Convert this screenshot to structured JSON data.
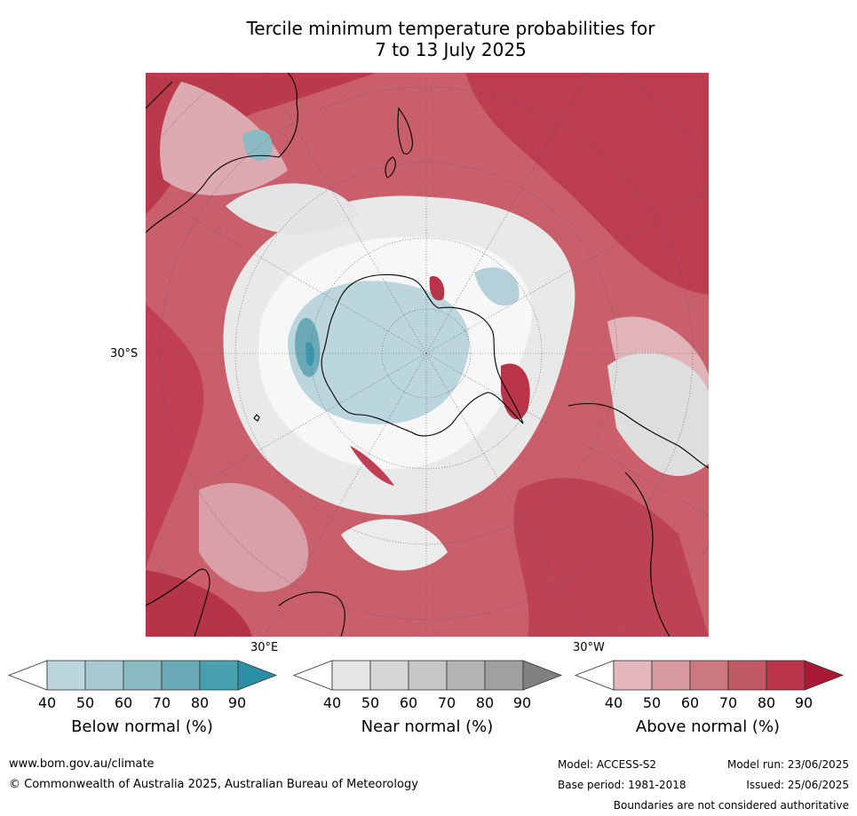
{
  "title_line1": "Tercile minimum temperature probabilities for",
  "title_line2": "7 to 13 July 2025",
  "map_labels": {
    "lat_30s": "30°S",
    "lon_30e": "30°E",
    "lon_30w": "30°W"
  },
  "colorbars": [
    {
      "label": "Below normal (%)",
      "ticks": [
        "40",
        "50",
        "60",
        "70",
        "80",
        "90"
      ],
      "colors": [
        "#ffffff",
        "#bcd6dd",
        "#a6c8cf",
        "#8bbac3",
        "#6aaab6",
        "#48a0b0",
        "#2b8fa6"
      ]
    },
    {
      "label": "Near normal (%)",
      "ticks": [
        "40",
        "50",
        "60",
        "70",
        "80",
        "90"
      ],
      "colors": [
        "#ffffff",
        "#e6e6e6",
        "#d6d6d6",
        "#c6c6c6",
        "#b4b4b4",
        "#a0a0a0",
        "#808080"
      ]
    },
    {
      "label": "Above normal (%)",
      "ticks": [
        "40",
        "50",
        "60",
        "70",
        "80",
        "90"
      ],
      "colors": [
        "#ffffff",
        "#e3b7bc",
        "#d8999f",
        "#cc7880",
        "#c25a66",
        "#b93448",
        "#a81a34"
      ]
    }
  ],
  "footer": {
    "url": "www.bom.gov.au/climate",
    "copyright": "© Commonwealth of Australia 2025, Australian Bureau of Meteorology",
    "model": "Model: ACCESS-S2",
    "base_period": "Base period: 1981-2018",
    "model_run": "Model run: 23/06/2025",
    "issued": "Issued: 25/06/2025",
    "disclaimer": "Boundaries are not considered authoritative"
  }
}
